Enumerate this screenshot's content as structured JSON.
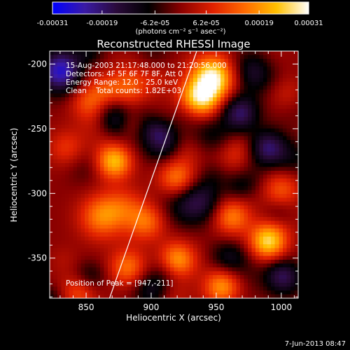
{
  "chart_data": {
    "type": "heatmap",
    "title": "Reconstructed RHESSI Image",
    "xlabel": "Heliocentric X (arcsec)",
    "ylabel": "Heliocentric Y (arcsec)",
    "xlim": [
      822,
      1013
    ],
    "ylim": [
      -381,
      -190
    ],
    "x_ticks": [
      850,
      900,
      950,
      1000
    ],
    "y_ticks": [
      -200,
      -250,
      -300,
      -350
    ],
    "colorbar": {
      "range": [
        -0.00031,
        0.00031
      ],
      "tick_values": [
        -0.00031,
        -0.00019,
        -6.2e-05,
        6.2e-05,
        0.00019,
        0.00031
      ],
      "tick_labels": [
        "-0.00031",
        "-0.00019",
        "-6.2e-05",
        "6.2e-05",
        "0.00019",
        "0.00031"
      ],
      "unit_label": "(photons cm⁻² s⁻¹ asec⁻²)",
      "colors": [
        "#0000ff",
        "#3a1aa6",
        "#2a0a3a",
        "#000000",
        "#8a0000",
        "#e02000",
        "#ff6a00",
        "#ffc000",
        "#ffffff"
      ]
    },
    "annotations": {
      "time": "15-Aug-2003 21:17:48.000 to 21:20:56.000",
      "detectors": "Detectors: 4F 5F 6F 7F 8F, Att 0",
      "energy": "Energy Range: 12.0 - 25.0 keV",
      "method": "Clean    Total counts: 1.82E+03",
      "peak": "Position of Peak = [947,-211]"
    },
    "limb_line": {
      "x": [
        868,
        935
      ],
      "y": [
        -381,
        -190
      ]
    },
    "sources": [
      {
        "x": 947,
        "y": -211,
        "amp": 1.0,
        "w": 12
      },
      {
        "x": 938,
        "y": -228,
        "amp": 0.7,
        "w": 10
      },
      {
        "x": 882,
        "y": -218,
        "amp": 0.45,
        "w": 12
      },
      {
        "x": 852,
        "y": -228,
        "amp": 0.4,
        "w": 10
      },
      {
        "x": 872,
        "y": -275,
        "amp": 0.85,
        "w": 10
      },
      {
        "x": 920,
        "y": -288,
        "amp": 0.5,
        "w": 10
      },
      {
        "x": 862,
        "y": -318,
        "amp": 0.55,
        "w": 12
      },
      {
        "x": 897,
        "y": -322,
        "amp": 0.45,
        "w": 10
      },
      {
        "x": 882,
        "y": -357,
        "amp": 0.5,
        "w": 10
      },
      {
        "x": 920,
        "y": -352,
        "amp": 0.7,
        "w": 10
      },
      {
        "x": 990,
        "y": -337,
        "amp": 0.85,
        "w": 10
      },
      {
        "x": 962,
        "y": -318,
        "amp": 0.55,
        "w": 10
      },
      {
        "x": 955,
        "y": -372,
        "amp": 0.7,
        "w": 10
      },
      {
        "x": 1000,
        "y": -297,
        "amp": 0.4,
        "w": 10
      },
      {
        "x": 1005,
        "y": -225,
        "amp": 0.35,
        "w": 10
      },
      {
        "x": 965,
        "y": -268,
        "amp": 0.3,
        "w": 10
      },
      {
        "x": 835,
        "y": -265,
        "amp": 0.3,
        "w": 10
      },
      {
        "x": 845,
        "y": -375,
        "amp": 0.35,
        "w": 10
      },
      {
        "x": 830,
        "y": -205,
        "amp": -0.9,
        "w": 12
      },
      {
        "x": 872,
        "y": -242,
        "amp": -0.5,
        "w": 10
      },
      {
        "x": 908,
        "y": -262,
        "amp": -0.4,
        "w": 10
      },
      {
        "x": 968,
        "y": -238,
        "amp": -0.6,
        "w": 10
      },
      {
        "x": 990,
        "y": -265,
        "amp": -0.6,
        "w": 10
      },
      {
        "x": 1002,
        "y": -365,
        "amp": -0.5,
        "w": 10
      },
      {
        "x": 938,
        "y": -305,
        "amp": -0.4,
        "w": 12
      },
      {
        "x": 960,
        "y": -350,
        "amp": -0.35,
        "w": 10
      },
      {
        "x": 900,
        "y": -375,
        "amp": -0.35,
        "w": 10
      },
      {
        "x": 980,
        "y": -205,
        "amp": -0.5,
        "w": 12
      }
    ]
  },
  "footer": {
    "timestamp": "7-Jun-2013 08:47"
  }
}
